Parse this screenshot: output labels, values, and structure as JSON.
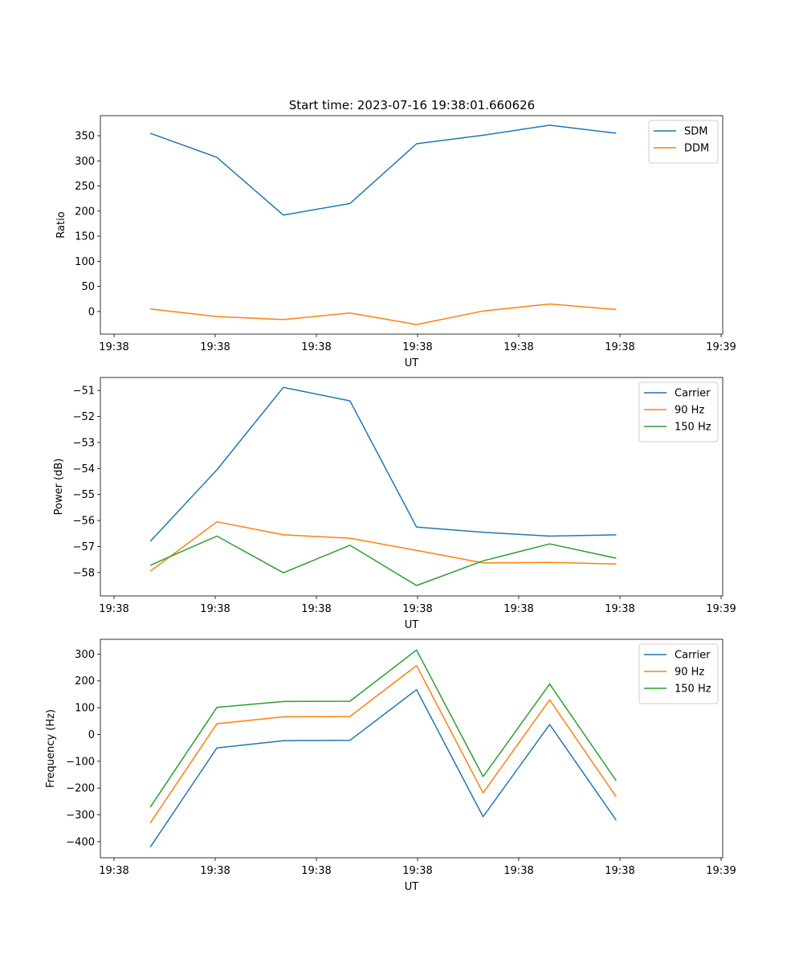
{
  "figure": {
    "title": "Start time: 2023-07-16 19:38:01.660626"
  },
  "chart_data": [
    {
      "type": "line",
      "title": "Start time: 2023-07-16 19:38:01.660626",
      "xlabel": "UT",
      "ylabel": "Ratio",
      "x_tick_labels": [
        "19:38",
        "19:38",
        "19:38",
        "19:38",
        "19:38",
        "19:38",
        "19:39"
      ],
      "y_ticks": [
        0,
        50,
        100,
        150,
        200,
        250,
        300,
        350
      ],
      "ylim": [
        -45,
        390
      ],
      "xlim": [
        -0.75,
        8.6
      ],
      "grid": false,
      "legend_position": "upper right",
      "x": [
        0,
        1,
        2,
        3,
        4,
        5,
        6,
        7
      ],
      "series": [
        {
          "name": "SDM",
          "color": "#1f77b4",
          "values": [
            355,
            307,
            192,
            215,
            334,
            351,
            371,
            355
          ]
        },
        {
          "name": "DDM",
          "color": "#ff7f0e",
          "values": [
            5,
            -10,
            -16,
            -3,
            -26,
            1,
            15,
            4
          ]
        }
      ]
    },
    {
      "type": "line",
      "title": "",
      "xlabel": "UT",
      "ylabel": "Power (dB)",
      "x_tick_labels": [
        "19:38",
        "19:38",
        "19:38",
        "19:38",
        "19:38",
        "19:38",
        "19:39"
      ],
      "y_ticks": [
        -58,
        -57,
        -56,
        -55,
        -54,
        -53,
        -52,
        -51
      ],
      "y_tick_labels": [
        "−58",
        "−57",
        "−56",
        "−55",
        "−54",
        "−53",
        "−52",
        "−51"
      ],
      "ylim": [
        -58.9,
        -50.5
      ],
      "xlim": [
        -0.75,
        8.6
      ],
      "grid": false,
      "legend_position": "upper right",
      "x": [
        0,
        1,
        2,
        3,
        4,
        5,
        6,
        7
      ],
      "series": [
        {
          "name": "Carrier",
          "color": "#1f77b4",
          "values": [
            -56.8,
            -54.05,
            -50.88,
            -51.4,
            -56.25,
            -56.45,
            -56.6,
            -56.55
          ]
        },
        {
          "name": "90 Hz",
          "color": "#ff7f0e",
          "values": [
            -57.95,
            -56.05,
            -56.55,
            -56.68,
            -57.15,
            -57.63,
            -57.61,
            -57.67
          ]
        },
        {
          "name": "150 Hz",
          "color": "#2ca02c",
          "values": [
            -57.72,
            -56.6,
            -58.01,
            -56.95,
            -58.5,
            -57.55,
            -56.9,
            -57.45
          ]
        }
      ]
    },
    {
      "type": "line",
      "title": "",
      "xlabel": "UT",
      "ylabel": "Frequency (Hz)",
      "x_tick_labels": [
        "19:38",
        "19:38",
        "19:38",
        "19:38",
        "19:38",
        "19:38",
        "19:39"
      ],
      "y_ticks": [
        -400,
        -300,
        -200,
        -100,
        0,
        100,
        200,
        300
      ],
      "y_tick_labels": [
        "−400",
        "−300",
        "−200",
        "−100",
        "0",
        "100",
        "200",
        "300"
      ],
      "ylim": [
        -460,
        355
      ],
      "xlim": [
        -0.75,
        8.6
      ],
      "grid": false,
      "legend_position": "upper right",
      "x": [
        0,
        1,
        2,
        3,
        4,
        5,
        6,
        7
      ],
      "series": [
        {
          "name": "Carrier",
          "color": "#1f77b4",
          "values": [
            -420,
            -50,
            -23,
            -22,
            167,
            -307,
            37,
            -320
          ]
        },
        {
          "name": "90 Hz",
          "color": "#ff7f0e",
          "values": [
            -330,
            40,
            66,
            67,
            257,
            -218,
            129,
            -233
          ]
        },
        {
          "name": "150 Hz",
          "color": "#2ca02c",
          "values": [
            -271,
            101,
            123,
            124,
            315,
            -157,
            188,
            -173
          ]
        }
      ]
    }
  ]
}
